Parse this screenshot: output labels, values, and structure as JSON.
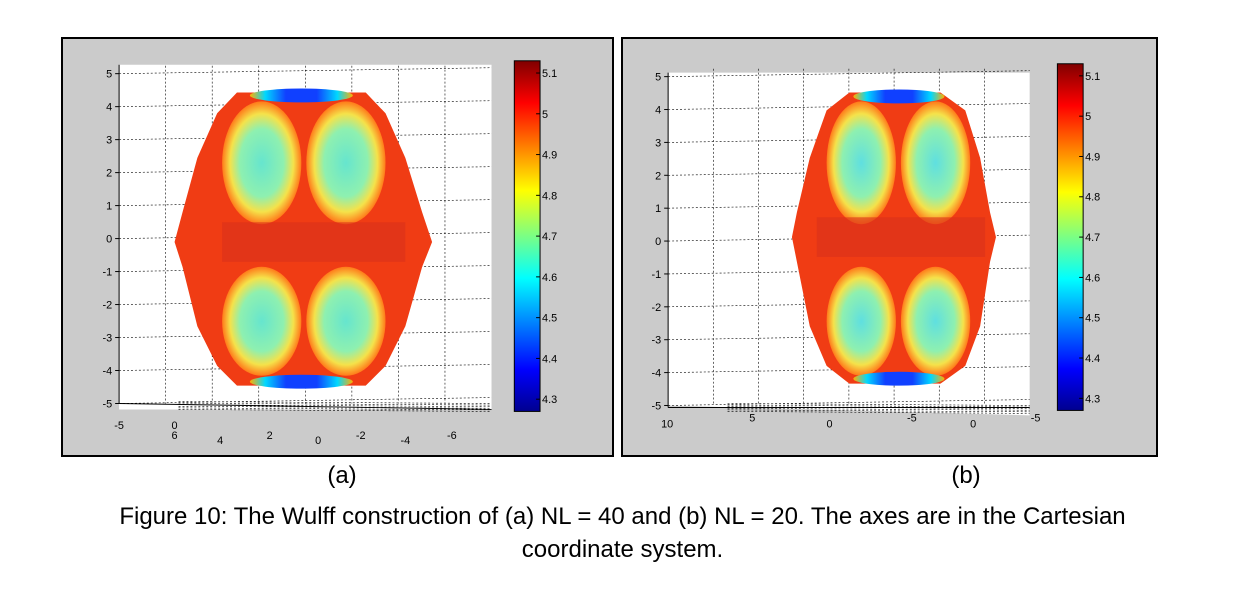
{
  "figure": {
    "caption_line1": "Figure 10: The Wulff construction of (a) NL = 40 and (b) NL = 20. The axes are in the Cartesian",
    "caption_line2": "coordinate system."
  },
  "panels": [
    {
      "label": "(a)",
      "y_ticks": [
        "5",
        "4",
        "3",
        "2",
        "1",
        "0",
        "-1",
        "-2",
        "-3",
        "-4",
        "-5"
      ],
      "x_ticks_back": [
        "-5",
        "0"
      ],
      "x_ticks_front": [
        "6",
        "4",
        "2",
        "0",
        "-2",
        "-4",
        "-6"
      ],
      "colorbar_ticks": [
        "5.1",
        "5",
        "4.9",
        "4.8",
        "4.7",
        "4.6",
        "4.5",
        "4.4",
        "4.3"
      ]
    },
    {
      "label": "(b)",
      "y_ticks": [
        "5",
        "4",
        "3",
        "2",
        "1",
        "0",
        "-1",
        "-2",
        "-3",
        "-4",
        "-5"
      ],
      "x_ticks_back": [],
      "x_ticks_front": [
        "10",
        "5",
        "0",
        "-5",
        "0",
        "-5"
      ],
      "colorbar_ticks": [
        "5.1",
        "5",
        "4.9",
        "4.8",
        "4.7",
        "4.6",
        "4.5",
        "4.4",
        "4.3"
      ]
    }
  ],
  "chart_data": [
    {
      "type": "surface",
      "panel": "(a)",
      "zlim": [
        -5,
        5
      ],
      "colorbar": {
        "min": 4.27,
        "max": 5.13,
        "colormap": "jet",
        "ticks": [
          5.1,
          5.0,
          4.9,
          4.8,
          4.7,
          4.6,
          4.5,
          4.4,
          4.3
        ]
      },
      "grid": true
    },
    {
      "type": "surface",
      "panel": "(b)",
      "zlim": [
        -5,
        5
      ],
      "colorbar": {
        "min": 4.27,
        "max": 5.13,
        "colormap": "jet",
        "ticks": [
          5.1,
          5.0,
          4.9,
          4.8,
          4.7,
          4.6,
          4.5,
          4.4,
          4.3
        ]
      },
      "grid": true
    }
  ]
}
